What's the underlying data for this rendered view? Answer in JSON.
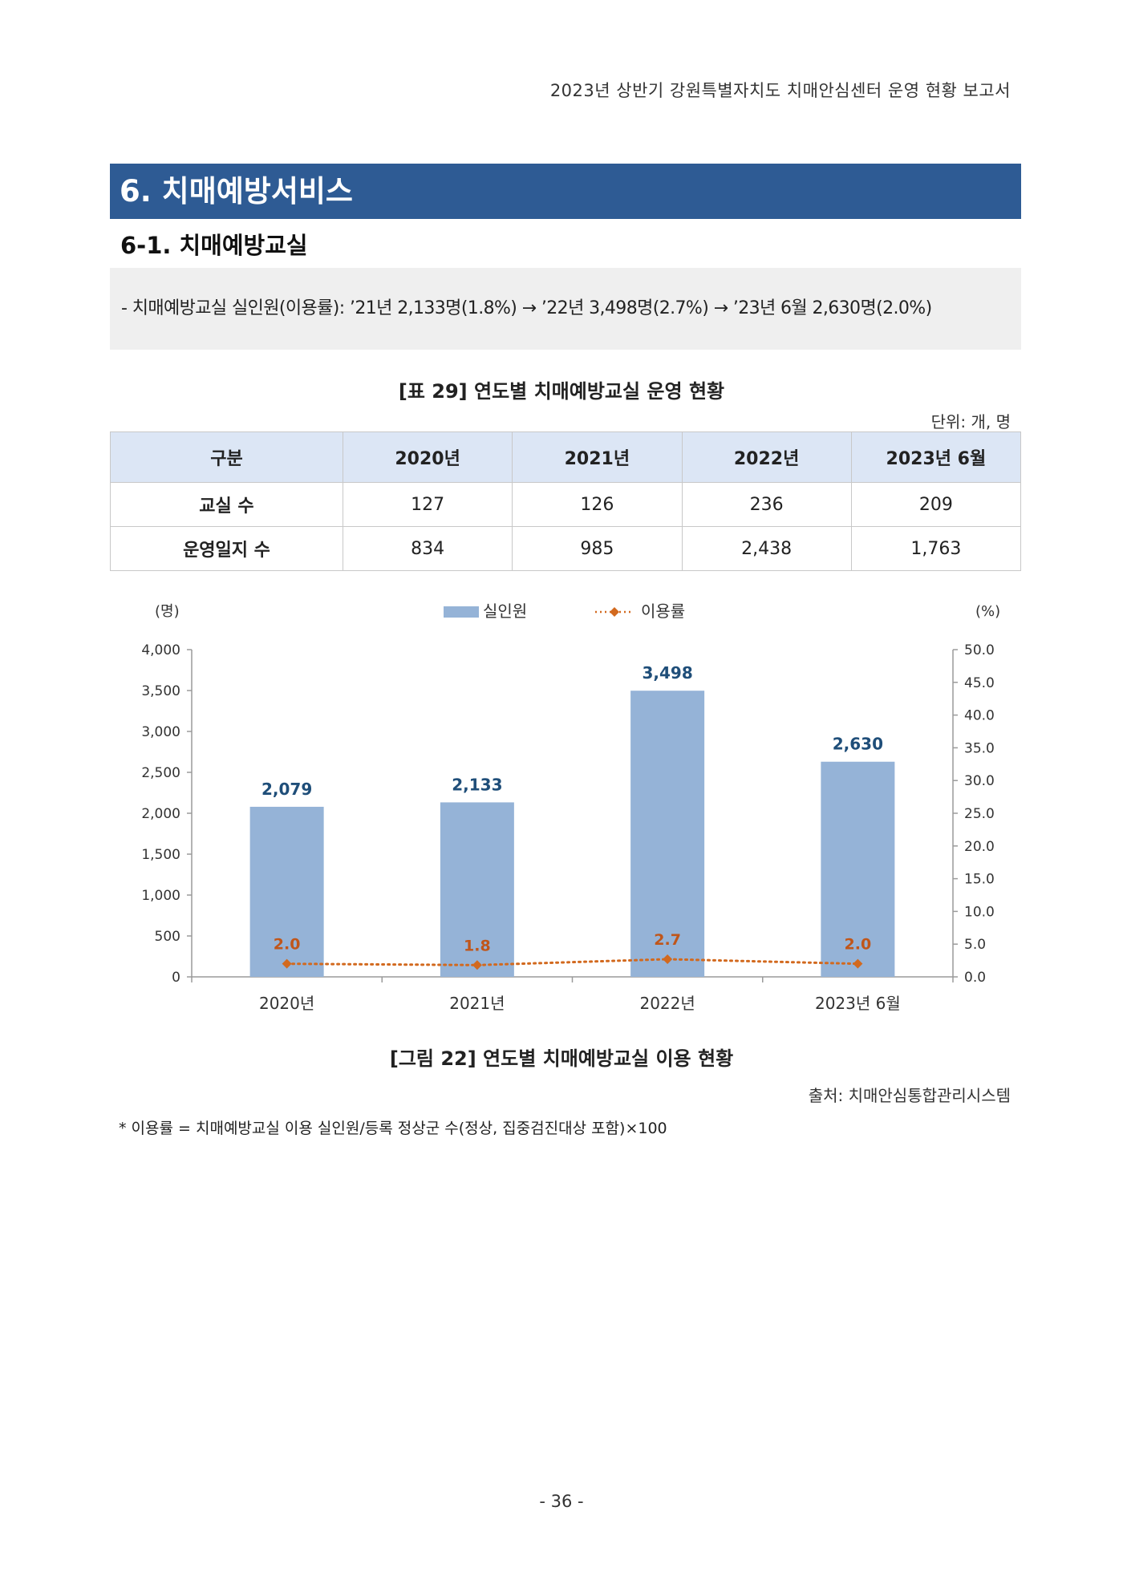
{
  "running_header": "2023년 상반기 강원특별자치도 치매안심센터 운영 현황 보고서",
  "section_title": "6. 치매예방서비스",
  "subsection_title": "6-1. 치매예방교실",
  "summary": "- 치매예방교실 실인원(이용률): ’21년 2,133명(1.8%) → ’22년 3,498명(2.7%) → ’23년 6월 2,630명(2.0%)",
  "table": {
    "caption": "[표 29] 연도별 치매예방교실 운영 현황",
    "unit": "단위: 개, 명",
    "headers": [
      "구분",
      "2020년",
      "2021년",
      "2022년",
      "2023년 6월"
    ],
    "rows": [
      {
        "label": "교실 수",
        "values": [
          "127",
          "126",
          "236",
          "209"
        ]
      },
      {
        "label": "운영일지 수",
        "values": [
          "834",
          "985",
          "2,438",
          "1,763"
        ]
      }
    ]
  },
  "chart_data": {
    "type": "bar",
    "categories": [
      "2020년",
      "2021년",
      "2022년",
      "2023년 6월"
    ],
    "series": [
      {
        "name": "실인원",
        "type": "bar",
        "axis": "left",
        "values": [
          2079,
          2133,
          3498,
          2630
        ],
        "labels": [
          "2,079",
          "2,133",
          "3,498",
          "2,630"
        ],
        "color": "#95b3d7"
      },
      {
        "name": "이용률",
        "type": "line",
        "axis": "right",
        "values": [
          2.0,
          1.8,
          2.7,
          2.0
        ],
        "labels": [
          "2.0",
          "1.8",
          "2.7",
          "2.0"
        ],
        "color": "#d2691e"
      }
    ],
    "y_left": {
      "unit": "(명)",
      "ylim": [
        0,
        4000
      ],
      "ticks": [
        "0",
        "500",
        "1,000",
        "1,500",
        "2,000",
        "2,500",
        "3,000",
        "3,500",
        "4,000"
      ]
    },
    "y_right": {
      "unit": "(%)",
      "ylim": [
        0,
        50
      ],
      "ticks": [
        "0.0",
        "5.0",
        "10.0",
        "15.0",
        "20.0",
        "25.0",
        "30.0",
        "35.0",
        "40.0",
        "45.0",
        "50.0"
      ]
    },
    "grid": false,
    "legend_position": "top-center",
    "bar_label_color": "#1f4e79",
    "line_label_color": "#c0561a"
  },
  "figure_caption": "[그림 22] 연도별 치매예방교실 이용 현황",
  "source": "출처: 치매안심통합관리시스템",
  "footnote": "* 이용률 = 치매예방교실 이용 실인원/등록 정상군 수(정상, 집중검진대상 포함)×100",
  "page_number": "- 36 -"
}
